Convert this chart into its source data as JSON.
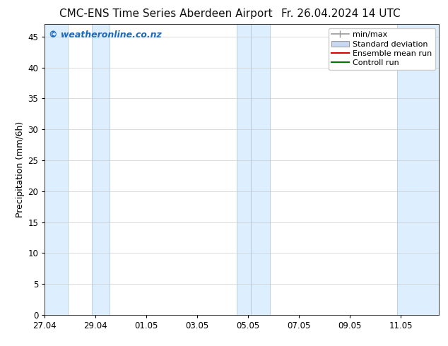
{
  "title_left": "CMC-ENS Time Series Aberdeen Airport",
  "title_right": "Fr. 26.04.2024 14 UTC",
  "ylabel": "Precipitation (mm/6h)",
  "watermark": "© weatheronline.co.nz",
  "watermark_color": "#1a6abf",
  "ylim": [
    0,
    47
  ],
  "yticks": [
    0,
    5,
    10,
    15,
    20,
    25,
    30,
    35,
    40,
    45
  ],
  "background_color": "#ffffff",
  "plot_bg_color": "#ffffff",
  "legend_labels": [
    "min/max",
    "Standard deviation",
    "Ensemble mean run",
    "Controll run"
  ],
  "xtick_labels": [
    "27.04",
    "29.04",
    "01.05",
    "03.05",
    "05.05",
    "07.05",
    "09.05",
    "11.05"
  ],
  "xtick_pos": [
    0,
    2,
    4,
    6,
    8,
    10,
    12,
    14
  ],
  "xlim": [
    0,
    15.5
  ],
  "shade_color": "#ddeeff",
  "shade_edge_color": "#b0cce0",
  "shaded_bands": [
    [
      0.0,
      0.9
    ],
    [
      1.85,
      2.55
    ],
    [
      7.55,
      8.1
    ],
    [
      8.1,
      8.85
    ],
    [
      13.85,
      15.5
    ]
  ],
  "title_fontsize": 11,
  "ylabel_fontsize": 9,
  "tick_fontsize": 8.5,
  "watermark_fontsize": 9,
  "legend_fontsize": 8
}
